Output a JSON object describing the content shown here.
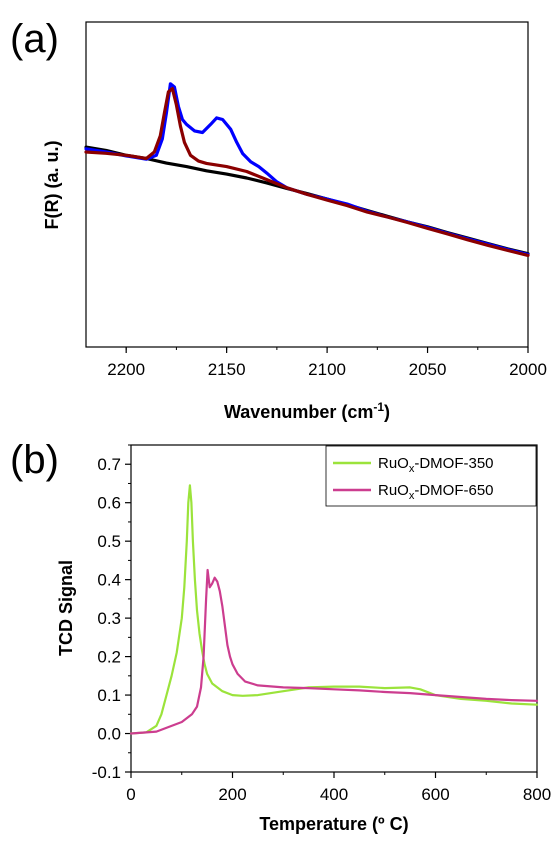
{
  "chart_data": [
    {
      "panel": "(a)",
      "type": "line",
      "xlabel": "Wavenumber (cm",
      "xlabel_sup": "-1",
      "xlabel_close": ")",
      "ylabel": "F(R) (a. u.)",
      "xlim": [
        2220,
        2000
      ],
      "ylim": [
        0,
        1
      ],
      "xticks": [
        "2200",
        "2150",
        "2100",
        "2050",
        "2000"
      ],
      "xtick_values": [
        2200,
        2150,
        2100,
        2050,
        2000
      ],
      "yticks": [],
      "colors": [
        "#000000",
        "#0000ff",
        "#8b0000"
      ],
      "series": [
        {
          "color": "#000000",
          "x": [
            2220,
            2210,
            2200,
            2190,
            2180,
            2170,
            2160,
            2150,
            2140,
            2130,
            2120,
            2110,
            2100,
            2090,
            2080,
            2070,
            2060,
            2050,
            2040,
            2030,
            2020,
            2010,
            2000
          ],
          "y": [
            0.615,
            0.605,
            0.59,
            0.58,
            0.566,
            0.555,
            0.542,
            0.532,
            0.52,
            0.505,
            0.488,
            0.472,
            0.455,
            0.438,
            0.42,
            0.402,
            0.385,
            0.37,
            0.352,
            0.335,
            0.318,
            0.302,
            0.287
          ]
        },
        {
          "color": "#0000ff",
          "x": [
            2220,
            2210,
            2200,
            2190,
            2185,
            2182,
            2180,
            2178,
            2176,
            2174,
            2172,
            2170,
            2166,
            2162,
            2158,
            2155,
            2152,
            2148,
            2145,
            2142,
            2138,
            2134,
            2130,
            2125,
            2120,
            2110,
            2100,
            2090,
            2080,
            2070,
            2060,
            2050,
            2040,
            2030,
            2020,
            2010,
            2000
          ],
          "y": [
            0.61,
            0.6,
            0.588,
            0.578,
            0.59,
            0.64,
            0.72,
            0.81,
            0.8,
            0.74,
            0.7,
            0.685,
            0.665,
            0.66,
            0.685,
            0.705,
            0.7,
            0.67,
            0.63,
            0.595,
            0.57,
            0.555,
            0.535,
            0.508,
            0.49,
            0.47,
            0.455,
            0.44,
            0.418,
            0.4,
            0.385,
            0.368,
            0.35,
            0.333,
            0.317,
            0.3,
            0.285
          ]
        },
        {
          "color": "#8b0000",
          "x": [
            2220,
            2210,
            2200,
            2190,
            2186,
            2183,
            2181,
            2179,
            2177,
            2175,
            2173,
            2171,
            2168,
            2164,
            2160,
            2150,
            2140,
            2130,
            2120,
            2110,
            2100,
            2090,
            2080,
            2070,
            2060,
            2050,
            2040,
            2030,
            2020,
            2010,
            2000
          ],
          "y": [
            0.6,
            0.596,
            0.59,
            0.58,
            0.6,
            0.65,
            0.72,
            0.785,
            0.795,
            0.745,
            0.68,
            0.63,
            0.59,
            0.572,
            0.565,
            0.555,
            0.54,
            0.515,
            0.49,
            0.47,
            0.452,
            0.435,
            0.415,
            0.4,
            0.383,
            0.365,
            0.348,
            0.33,
            0.313,
            0.297,
            0.282
          ]
        }
      ]
    },
    {
      "panel": "(b)",
      "type": "line",
      "xlabel": "Temperature (º C)",
      "ylabel": "TCD Signal",
      "xlim": [
        0,
        800
      ],
      "ylim": [
        -0.1,
        0.75
      ],
      "xticks": [
        "0",
        "200",
        "400",
        "600",
        "800"
      ],
      "xtick_values": [
        0,
        200,
        400,
        600,
        800
      ],
      "yticks": [
        "-0.1",
        "0.0",
        "0.1",
        "0.2",
        "0.3",
        "0.4",
        "0.5",
        "0.6",
        "0.7"
      ],
      "ytick_values": [
        -0.1,
        0,
        0.1,
        0.2,
        0.3,
        0.4,
        0.5,
        0.6,
        0.7
      ],
      "legend_position": "top-right",
      "series": [
        {
          "name_base": "RuO",
          "name_sub": "x",
          "name_tail": "-DMOF-350",
          "color": "#9be33b",
          "x": [
            0,
            30,
            50,
            60,
            70,
            80,
            90,
            100,
            105,
            110,
            113,
            116,
            119,
            122,
            126,
            130,
            135,
            140,
            145,
            150,
            160,
            180,
            200,
            220,
            250,
            300,
            350,
            400,
            450,
            500,
            550,
            570,
            600,
            650,
            700,
            750,
            800
          ],
          "y": [
            0.0,
            0.003,
            0.02,
            0.05,
            0.1,
            0.15,
            0.21,
            0.3,
            0.38,
            0.5,
            0.6,
            0.645,
            0.6,
            0.5,
            0.4,
            0.32,
            0.26,
            0.215,
            0.18,
            0.155,
            0.13,
            0.11,
            0.1,
            0.098,
            0.1,
            0.11,
            0.12,
            0.122,
            0.122,
            0.118,
            0.12,
            0.115,
            0.1,
            0.09,
            0.085,
            0.078,
            0.075
          ]
        },
        {
          "name_base": "RuO",
          "name_sub": "x",
          "name_tail": "-DMOF-650",
          "color": "#cc3d8f",
          "x": [
            0,
            50,
            100,
            120,
            130,
            138,
            143,
            148,
            151,
            155,
            160,
            165,
            170,
            175,
            180,
            185,
            190,
            195,
            200,
            210,
            225,
            250,
            300,
            350,
            400,
            450,
            500,
            550,
            600,
            650,
            700,
            750,
            800
          ],
          "y": [
            0.0,
            0.005,
            0.03,
            0.05,
            0.07,
            0.12,
            0.2,
            0.35,
            0.425,
            0.38,
            0.39,
            0.405,
            0.395,
            0.37,
            0.33,
            0.28,
            0.23,
            0.2,
            0.18,
            0.155,
            0.135,
            0.125,
            0.12,
            0.118,
            0.115,
            0.112,
            0.108,
            0.105,
            0.1,
            0.095,
            0.09,
            0.087,
            0.085
          ]
        }
      ]
    }
  ]
}
